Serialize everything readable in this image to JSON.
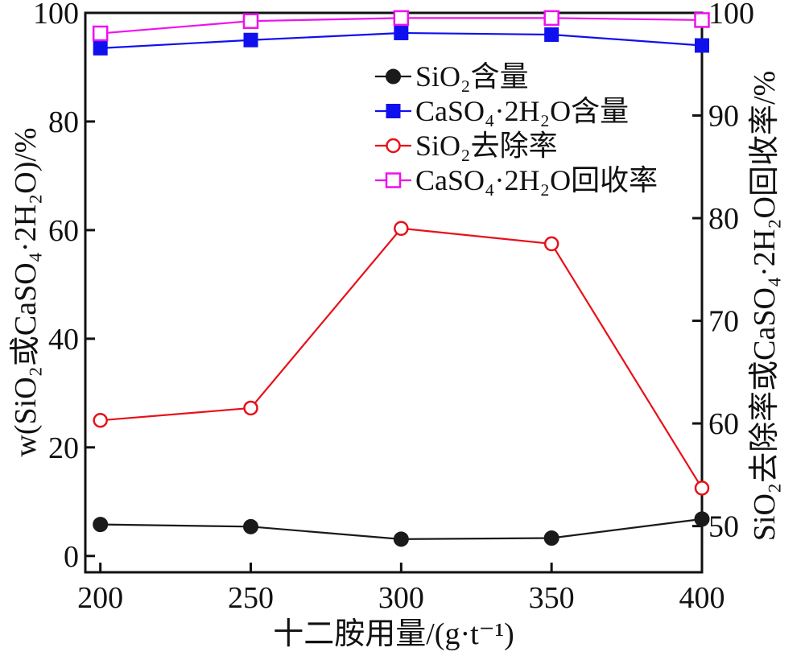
{
  "chart_data": {
    "type": "line",
    "x": [
      200,
      250,
      300,
      350,
      400
    ],
    "xlabel": "十二胺用量/(g·t⁻¹)",
    "ylabel_left": "w(SiO₂或CaSO₄·2H₂O)/%",
    "ylabel_right": "SiO₂去除率或CaSO₄·2H₂O回收率/%",
    "xlim": [
      195,
      400
    ],
    "ylim_left": [
      -3,
      100
    ],
    "ylim_right": [
      45.5,
      100
    ],
    "xticks": [
      "200",
      "250",
      "300",
      "350",
      "400"
    ],
    "yticks_left": [
      "0",
      "20",
      "40",
      "60",
      "80",
      "100"
    ],
    "yticks_right": [
      "50",
      "60",
      "70",
      "80",
      "90",
      "100"
    ],
    "grid": false,
    "legend_position": "top-right",
    "series": [
      {
        "name": "SiO₂含量",
        "axis": "left",
        "marker": "circle-filled",
        "color": "#1a1a1a",
        "values": [
          5.8,
          5.4,
          3.1,
          3.3,
          6.8
        ]
      },
      {
        "name": "CaSO₄·2H₂O含量",
        "axis": "left",
        "marker": "square-filled",
        "color": "#1010ee",
        "values": [
          93.5,
          95.0,
          96.3,
          96.0,
          94.0
        ]
      },
      {
        "name": "SiO₂去除率",
        "axis": "right",
        "marker": "circle-open",
        "color": "#e8101a",
        "values": [
          60.3,
          61.5,
          79.0,
          77.5,
          53.7
        ]
      },
      {
        "name": "CaSO₄·2H₂O回收率",
        "axis": "right",
        "marker": "square-open",
        "color": "#ee10ee",
        "values": [
          98.0,
          99.2,
          99.5,
          99.5,
          99.3
        ]
      }
    ]
  }
}
